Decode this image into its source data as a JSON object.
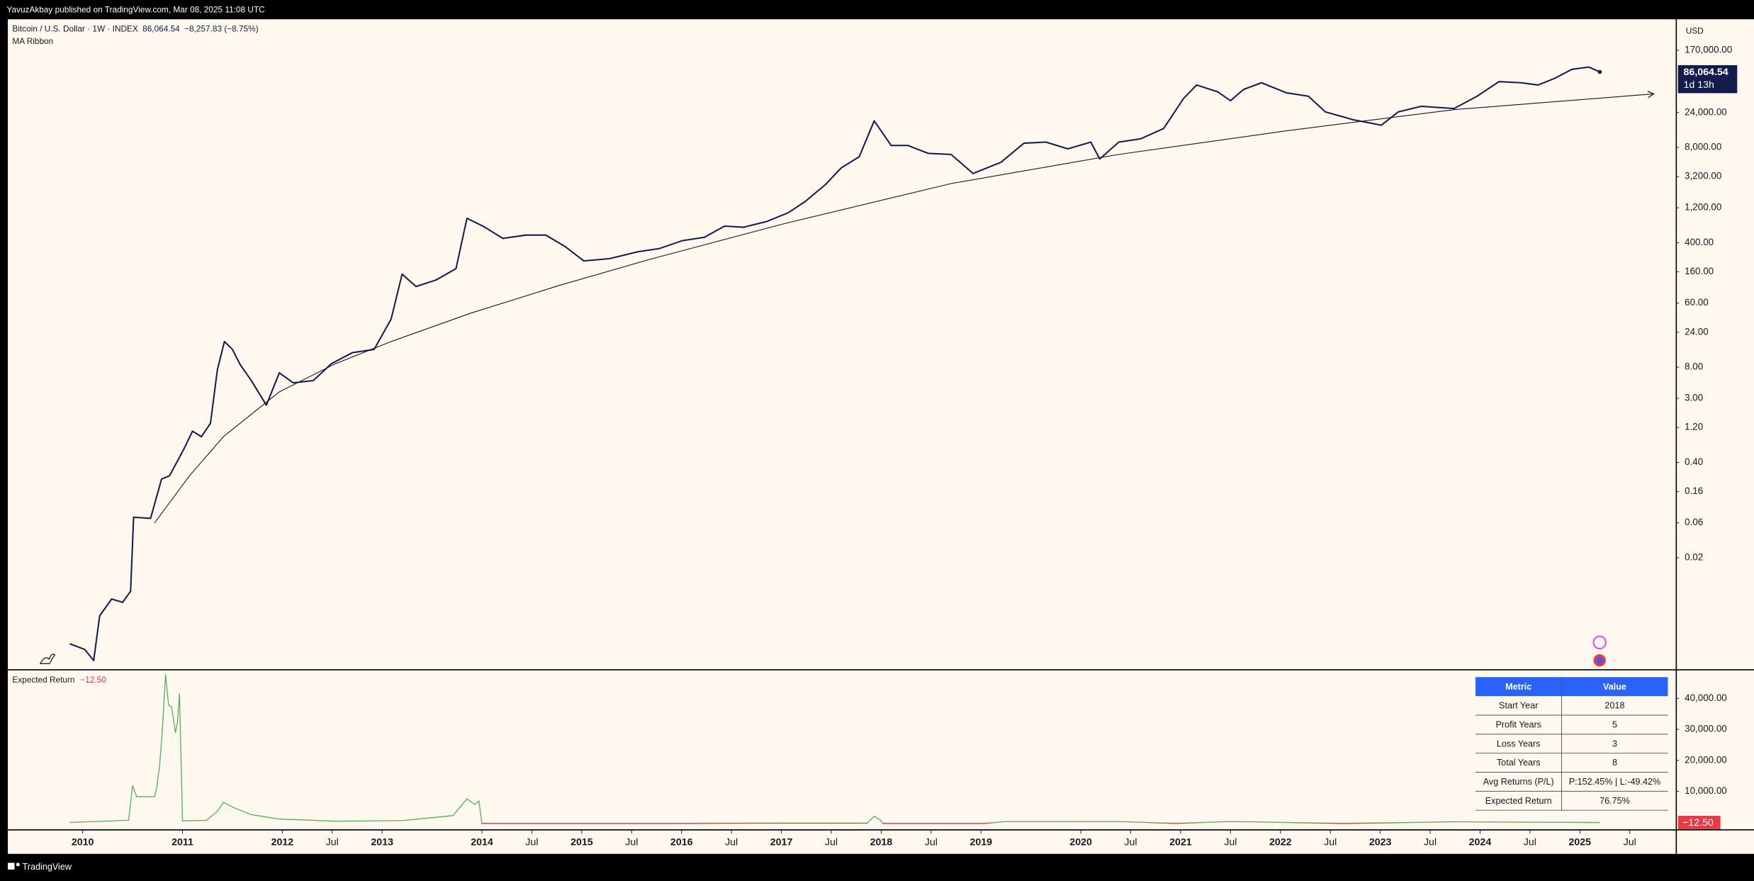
{
  "header": {
    "publisher": "YavuzAkbay published on TradingView.com, Mar 08, 2025 11:08 UTC",
    "footer": "TradingView"
  },
  "chart_data": [
    {
      "type": "line",
      "title": "Bitcoin / U.S. Dollar · 1W · INDEX",
      "change_label": "−8,257.83 (−8.75%)",
      "indicator": "MA Ribbon",
      "currency": "USD",
      "last_value": 86064.54,
      "last_value_label": "86,064.54",
      "countdown": "1d 13h",
      "log_scale": true,
      "xlim": [
        2009.25,
        2025.96
      ],
      "ylim": [
        0.0006,
        450000
      ],
      "yticks": [
        {
          "value": 170000,
          "label": "170,000.00"
        },
        {
          "value": 24000,
          "label": "24,000.00"
        },
        {
          "value": 8000,
          "label": "8,000.00"
        },
        {
          "value": 3200,
          "label": "3,200.00"
        },
        {
          "value": 1200,
          "label": "1,200.00"
        },
        {
          "value": 400,
          "label": "400.00"
        },
        {
          "value": 160,
          "label": "160.00"
        },
        {
          "value": 60,
          "label": "60.00"
        },
        {
          "value": 24,
          "label": "24.00"
        },
        {
          "value": 8,
          "label": "8.00"
        },
        {
          "value": 3,
          "label": "3.00"
        },
        {
          "value": 1.2,
          "label": "1.20"
        },
        {
          "value": 0.4,
          "label": "0.40"
        },
        0.16,
        0.06,
        0.02
      ],
      "series": [
        {
          "color": "#131c4d",
          "arrow": false,
          "x": [
            2009.87,
            2010.02,
            2010.11,
            2010.17,
            2010.29,
            2010.4,
            2010.48,
            2010.51,
            2010.68,
            2010.79,
            2010.87,
            2011.02,
            2011.1,
            2011.19,
            2011.28,
            2011.35,
            2011.42,
            2011.5,
            2011.58,
            2011.69,
            2011.84,
            2011.97,
            2012.11,
            2012.31,
            2012.49,
            2012.7,
            2012.92,
            2013.09,
            2013.2,
            2013.34,
            2013.54,
            2013.74,
            2013.85,
            2014.01,
            2014.21,
            2014.44,
            2014.64,
            2014.83,
            2015.02,
            2015.28,
            2015.56,
            2015.78,
            2016.01,
            2016.23,
            2016.43,
            2016.62,
            2016.85,
            2017.07,
            2017.24,
            2017.44,
            2017.6,
            2017.78,
            2017.93,
            2018.1,
            2018.27,
            2018.47,
            2018.7,
            2018.92,
            2019.2,
            2019.43,
            2019.65,
            2019.87,
            2020.1,
            2020.19,
            2020.38,
            2020.6,
            2020.83,
            2021.03,
            2021.16,
            2021.37,
            2021.5,
            2021.63,
            2021.81,
            2022.06,
            2022.28,
            2022.45,
            2022.73,
            2023.01,
            2023.18,
            2023.41,
            2023.74,
            2023.97,
            2024.19,
            2024.41,
            2024.58,
            2024.75,
            2024.92,
            2025.09,
            2025.2
          ],
          "values": [
            0.00134,
            0.00112,
            0.00079,
            0.00322,
            0.00547,
            0.00492,
            0.007,
            0.0715,
            0.069,
            0.237,
            0.263,
            0.634,
            1.07,
            0.9,
            1.37,
            7.45,
            17.9,
            14.0,
            8.57,
            5.24,
            2.42,
            6.7,
            4.89,
            5.24,
            8.89,
            12.6,
            14.0,
            36.3,
            149,
            101,
            124,
            177,
            863,
            675,
            458,
            509,
            509,
            358,
            226,
            243,
            301,
            334,
            428,
            475,
            675,
            652,
            778,
            1030,
            1470,
            2480,
            4210,
            5980,
            18500,
            8510,
            8510,
            6650,
            6430,
            3530,
            5020,
            9140,
            9460,
            7660,
            9460,
            5580,
            9460,
            10500,
            14500,
            37400,
            57000,
            46100,
            34800,
            49500,
            61200,
            44600,
            40100,
            24500,
            19100,
            16100,
            24500,
            29200,
            27200,
            40100,
            63400,
            61200,
            57000,
            70500,
            93300,
            100200,
            86064.54
          ]
        },
        {
          "color": "#131722",
          "arrow": true,
          "x": [
            2010.72,
            2011.07,
            2011.41,
            2011.97,
            2012.53,
            2013.09,
            2013.88,
            2014.77,
            2015.67,
            2017.02,
            2018.7,
            2020.38,
            2022.06,
            2023.74,
            2025.74
          ],
          "values": [
            0.0598,
            0.263,
            0.9,
            3.68,
            8.89,
            17.9,
            43.4,
            104,
            235,
            724,
            2570,
            6430,
            13500,
            26300,
            43100
          ]
        }
      ]
    },
    {
      "type": "line",
      "title": "Expected Return",
      "last_value": -12.5,
      "last_value_label": "−12.50",
      "positive_color": "#4caf50",
      "negative_color": "#f23645",
      "xlim": [
        2009.25,
        2025.96
      ],
      "ylim": [
        -2200,
        49000
      ],
      "yticks": [
        {
          "value": 40000,
          "label": "40,000.00"
        },
        {
          "value": 30000,
          "label": "30,000.00"
        },
        {
          "value": 20000,
          "label": "20,000.00"
        },
        {
          "value": 10000,
          "label": "10,000.00"
        }
      ],
      "xticks": [
        2010,
        2011,
        2012,
        {
          "value": 2012.5,
          "label": "Jul"
        },
        2013,
        2014,
        {
          "value": 2014.5,
          "label": "Jul"
        },
        2015,
        {
          "value": 2015.5,
          "label": "Jul"
        },
        2016,
        {
          "value": 2016.5,
          "label": "Jul"
        },
        2017,
        {
          "value": 2017.5,
          "label": "Jul"
        },
        2018,
        {
          "value": 2018.5,
          "label": "Jul"
        },
        2019,
        2020,
        {
          "value": 2020.5,
          "label": "Jul"
        },
        2021,
        {
          "value": 2021.5,
          "label": "Jul"
        },
        2022,
        {
          "value": 2022.5,
          "label": "Jul"
        },
        2023,
        {
          "value": 2023.5,
          "label": "Jul"
        },
        2024,
        {
          "value": 2024.5,
          "label": "Jul"
        },
        2025,
        {
          "value": 2025.5,
          "label": "Jul"
        }
      ],
      "x": [
        2009.87,
        2010.46,
        2010.5,
        2010.54,
        2010.72,
        2010.74,
        2010.77,
        2010.8,
        2010.83,
        2010.86,
        2010.89,
        2010.93,
        2010.95,
        2010.97,
        2011.0,
        2011.24,
        2011.35,
        2011.41,
        2011.52,
        2011.69,
        2011.97,
        2012.53,
        2013.2,
        2013.71,
        2013.85,
        2013.93,
        2013.97,
        2014.0,
        2015.89,
        2017.02,
        2017.86,
        2017.93,
        2017.99,
        2018.02,
        2019.03,
        2019.26,
        2020.38,
        2020.94,
        2021.5,
        2022.62,
        2023.74,
        2025.2
      ],
      "values": [
        0,
        700,
        11900,
        8300,
        8300,
        10800,
        18000,
        30700,
        47700,
        37900,
        37200,
        28900,
        32500,
        41500,
        500,
        700,
        3600,
        6500,
        4700,
        2500,
        1100,
        400,
        600,
        2200,
        7600,
        5800,
        6900,
        -300,
        -300,
        -200,
        -200,
        2000,
        800,
        -300,
        -300,
        300,
        300,
        -300,
        300,
        -300,
        200,
        -12.5
      ]
    }
  ],
  "table": {
    "header": [
      "Metric",
      "Value"
    ],
    "rows": [
      [
        "Start Year",
        "2018"
      ],
      [
        "Profit Years",
        "5"
      ],
      [
        "Loss Years",
        "3"
      ],
      [
        "Total Years",
        "8"
      ],
      [
        "Avg Returns (P/L)",
        "P:152.45% | L:-49.42%"
      ],
      [
        "Expected Return",
        "76.75%"
      ]
    ]
  }
}
